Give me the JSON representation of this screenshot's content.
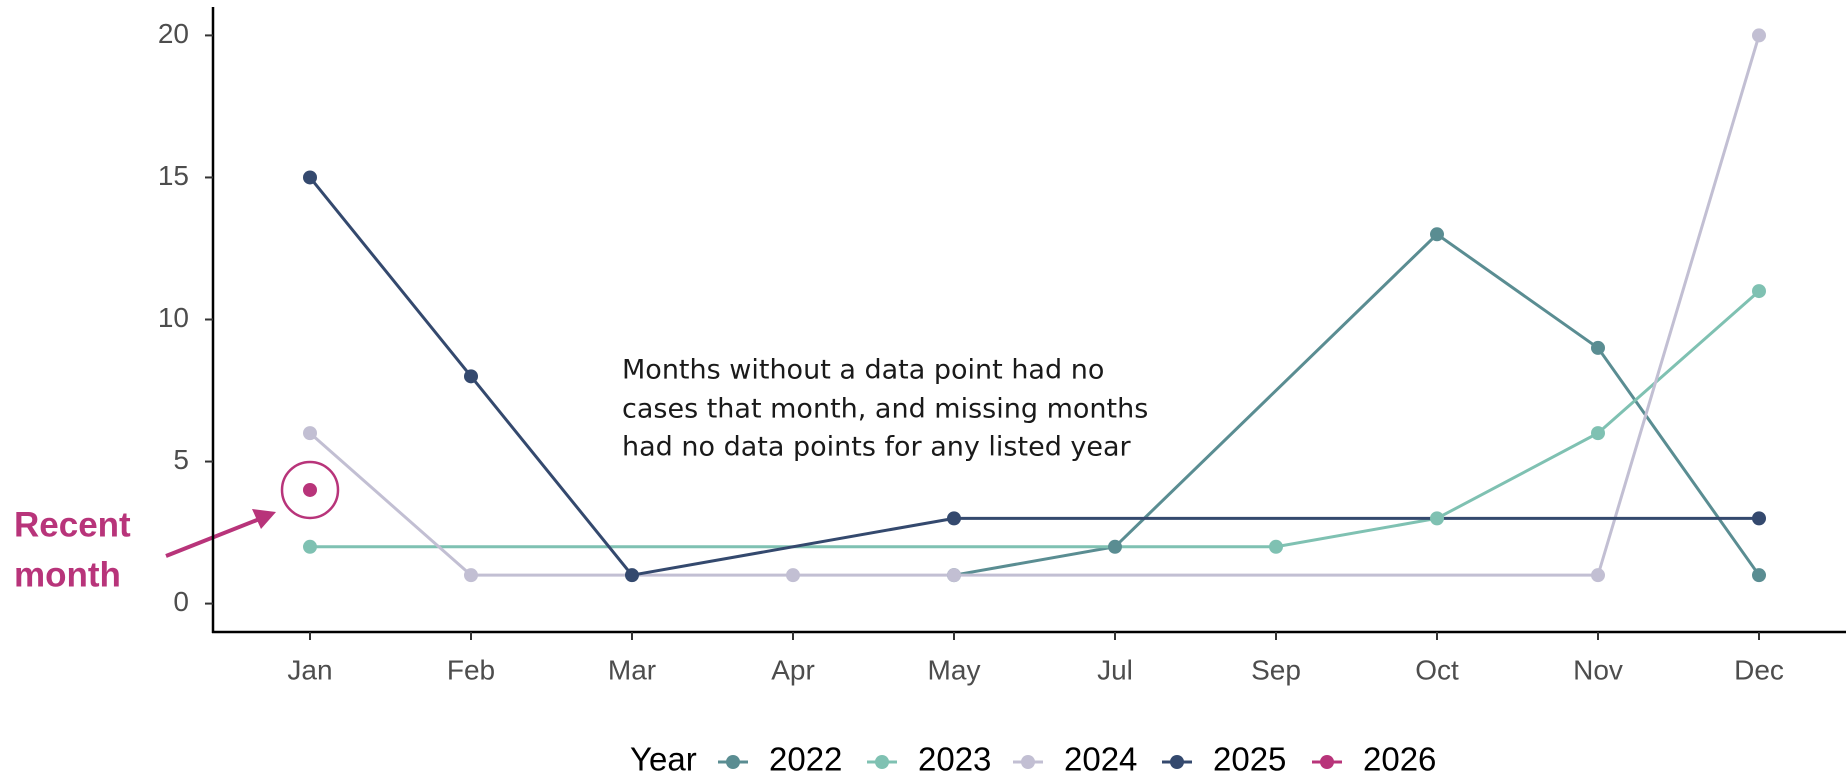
{
  "chart_data": {
    "type": "line",
    "categories": [
      "Jan",
      "Feb",
      "Mar",
      "Apr",
      "May",
      "Jul",
      "Sep",
      "Oct",
      "Nov",
      "Dec"
    ],
    "series": [
      {
        "name": "2022",
        "color": "#5a8d92",
        "values": [
          null,
          null,
          null,
          null,
          1,
          2,
          null,
          13,
          9,
          1
        ]
      },
      {
        "name": "2023",
        "color": "#7fc1b2",
        "values": [
          2,
          null,
          null,
          null,
          null,
          null,
          2,
          3,
          6,
          11
        ]
      },
      {
        "name": "2024",
        "color": "#c2bfd3",
        "values": [
          6,
          1,
          null,
          1,
          1,
          null,
          null,
          null,
          1,
          20
        ]
      },
      {
        "name": "2025",
        "color": "#34496e",
        "values": [
          15,
          8,
          1,
          null,
          3,
          null,
          null,
          null,
          null,
          3
        ]
      },
      {
        "name": "2026",
        "color": "#b8347a",
        "values": [
          4,
          null,
          null,
          null,
          null,
          null,
          null,
          null,
          null,
          null
        ]
      }
    ],
    "ylim": [
      -1,
      21
    ],
    "yticks": [
      0,
      5,
      10,
      15,
      20
    ],
    "legend_title": "Year",
    "legend_position": "bottom",
    "annotation_lines": [
      "Months without a data point had no",
      "cases that month, and missing months",
      "had no data points for any listed year"
    ],
    "highlight_label_lines": [
      "Recent",
      "month"
    ]
  }
}
